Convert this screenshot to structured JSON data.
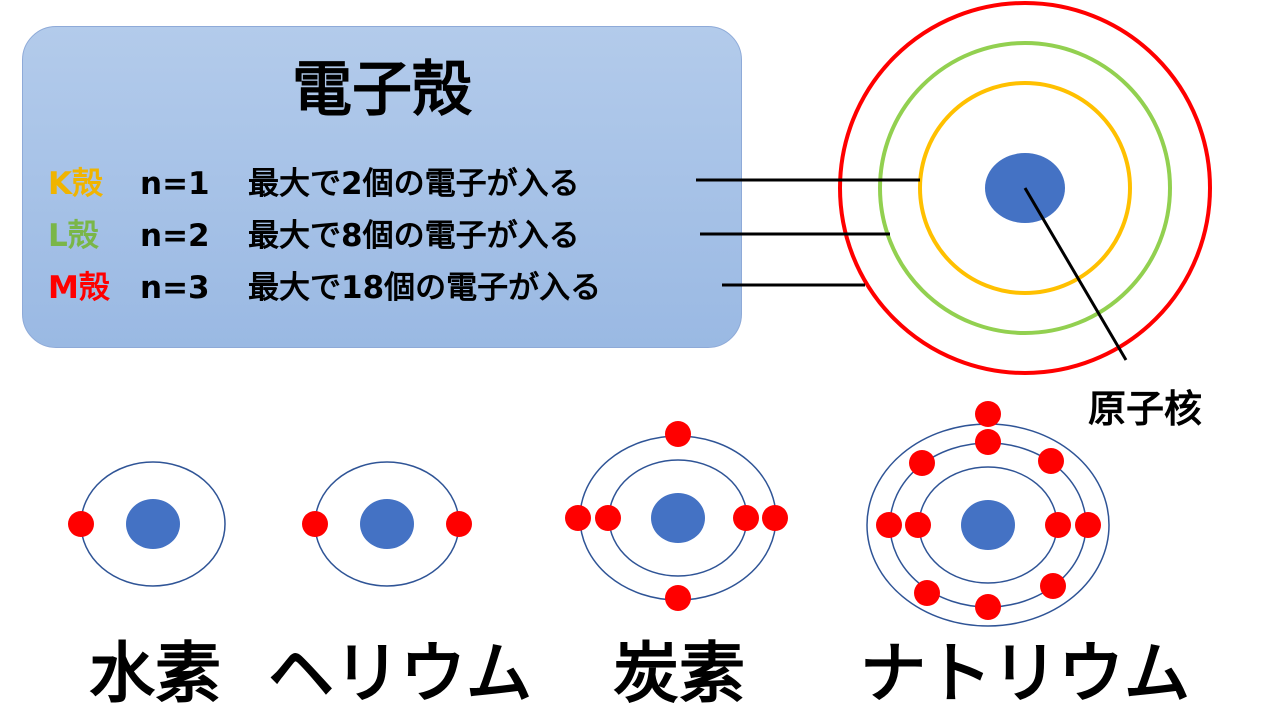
{
  "title": "電子殻",
  "shells": [
    {
      "name": "K殻",
      "n": "n=1",
      "desc": "最大で2個の電子が入る",
      "color": "#f0b400"
    },
    {
      "name": "L殻",
      "n": "n=2",
      "desc": "最大で8個の電子が入る",
      "color": "#7ab648"
    },
    {
      "name": "M殻",
      "n": "n=3",
      "desc": "最大で18個の電子が入る",
      "color": "#ff0000"
    }
  ],
  "nucleus_label": "原子核",
  "atoms": [
    {
      "name": "水素",
      "electrons_per_shell": [
        1
      ]
    },
    {
      "name": "ヘリウム",
      "electrons_per_shell": [
        2
      ]
    },
    {
      "name": "炭素",
      "electrons_per_shell": [
        2,
        4
      ]
    },
    {
      "name": "ナトリウム",
      "electrons_per_shell": [
        2,
        8,
        1
      ]
    }
  ],
  "colors": {
    "nucleus": "#4472c4",
    "electron": "#ff0000",
    "orbit": "#2f5496",
    "box": "#a6c0e8"
  }
}
